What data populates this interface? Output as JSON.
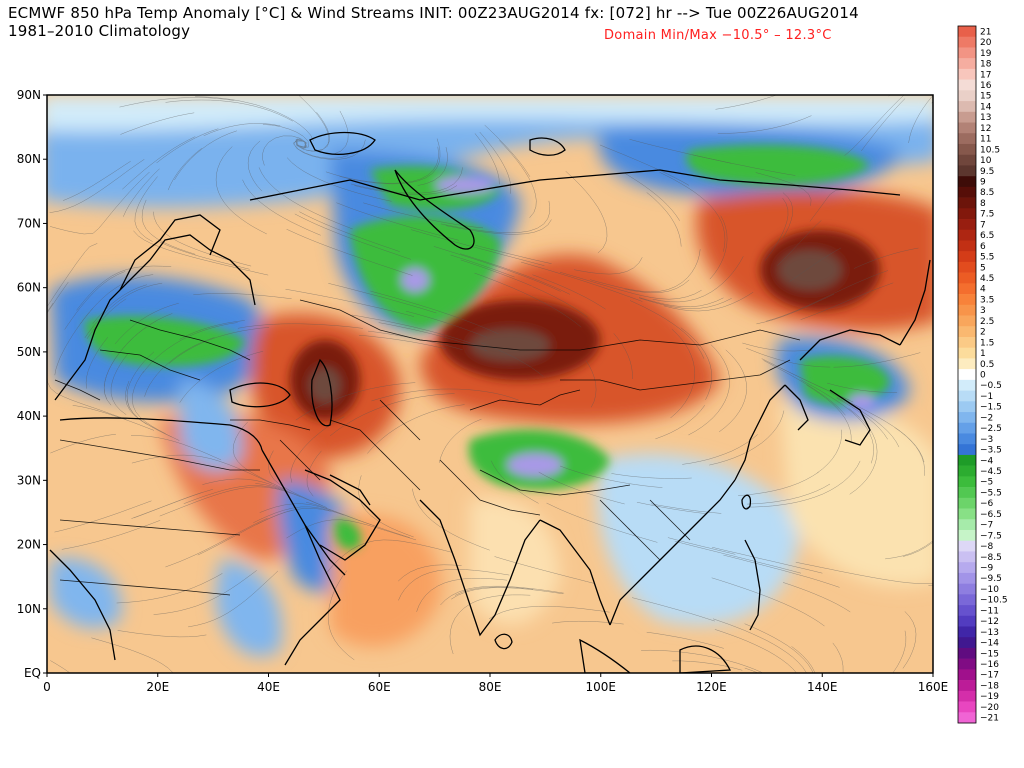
{
  "header": {
    "title_line1": "ECMWF 850 hPa Temp Anomaly [°C] & Wind Streams INIT: 00Z23AUG2014 fx: [072] hr --> Tue 00Z26AUG2014",
    "title_line2": "1981–2010 Climatology",
    "domain_minmax": "Domain Min/Max −10.5° –  12.3°C"
  },
  "colors": {
    "domain_text": "#ff2020",
    "ocean_base": "#f7c78f",
    "warm_strong": "#7a1a0c",
    "warm": "#d8542c",
    "cool": "#4a8ae0",
    "cold_green": "#3cbc3c",
    "coldest_violet": "#a899e6",
    "coastline": "#000000"
  },
  "map": {
    "x_axis_labels": [
      "0",
      "20E",
      "40E",
      "60E",
      "80E",
      "100E",
      "120E",
      "140E",
      "160E"
    ],
    "y_axis_labels": [
      "90N",
      "80N",
      "70N",
      "60N",
      "50N",
      "40N",
      "30N",
      "20N",
      "10N",
      "EQ"
    ],
    "lon_range": [
      0,
      160
    ],
    "lat_range": [
      0,
      90
    ],
    "features": [
      "temperature anomaly shading",
      "wind streamlines",
      "coastlines",
      "country borders"
    ]
  },
  "colorbar": {
    "labels": [
      "21",
      "20",
      "19",
      "18",
      "17",
      "16",
      "15",
      "14",
      "13",
      "12",
      "11",
      "10.5",
      "10",
      "9.5",
      "9",
      "8.5",
      "8",
      "7.5",
      "7",
      "6.5",
      "6",
      "5.5",
      "5",
      "4.5",
      "4",
      "3.5",
      "3",
      "2.5",
      "2",
      "1.5",
      "1",
      "0.5",
      "0",
      "−0.5",
      "−1",
      "−1.5",
      "−2",
      "−2.5",
      "−3",
      "−3.5",
      "−4",
      "−4.5",
      "−5",
      "−5.5",
      "−6",
      "−6.5",
      "−7",
      "−7.5",
      "−8",
      "−8.5",
      "−9",
      "−9.5",
      "−10",
      "−10.5",
      "−11",
      "−12",
      "−13",
      "−14",
      "−15",
      "−16",
      "−17",
      "−18",
      "−19",
      "−20",
      "−21"
    ],
    "colors": [
      "#e8604a",
      "#ee7a66",
      "#f29484",
      "#f5ada0",
      "#f8c6bc",
      "#f4dcd6",
      "#ead0c8",
      "#dcbab0",
      "#c89c90",
      "#b28276",
      "#9c6c60",
      "#86584c",
      "#70463c",
      "#5c362e",
      "#3e0c08",
      "#560e08",
      "#6c140a",
      "#82180c",
      "#981e10",
      "#ae2612",
      "#c23014",
      "#d43c18",
      "#e24c1e",
      "#ec5c24",
      "#f46e2e",
      "#f8823a",
      "#f8944a",
      "#f9a65c",
      "#fab870",
      "#fbca86",
      "#fcdc9c",
      "#fdecc0",
      "#ffffff",
      "#d2ecfa",
      "#b8dcf6",
      "#9ccaf2",
      "#80b6ee",
      "#64a0e8",
      "#4a8ae0",
      "#3474d6",
      "#1e9c28",
      "#2cac30",
      "#3cbc3c",
      "#52c852",
      "#6cd46a",
      "#88e086",
      "#a6ebaa",
      "#c6f4c8",
      "#ddd8f6",
      "#cac0f2",
      "#b6aaee",
      "#a294e8",
      "#8e7ee0",
      "#7a68d8",
      "#6652ce",
      "#523cc0",
      "#4026a8",
      "#401890",
      "#600c80",
      "#800c84",
      "#a0108c",
      "#bc1c98",
      "#d42eaa",
      "#e846c0",
      "#f064d4"
    ]
  }
}
